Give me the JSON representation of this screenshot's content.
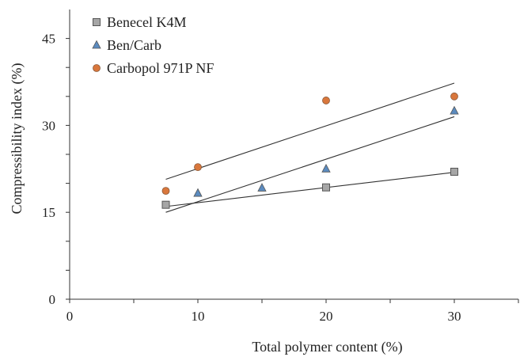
{
  "chart_data": {
    "type": "scatter",
    "xlabel": "Total polymer content (%)",
    "ylabel": "Compressibility index (%)",
    "xlim": [
      0,
      35
    ],
    "ylim": [
      0,
      50
    ],
    "x_ticks": [
      0,
      10,
      20,
      30
    ],
    "x_minor_ticks": [
      5,
      15,
      25,
      35
    ],
    "y_ticks": [
      0,
      15,
      30,
      45
    ],
    "y_minor_ticks": [
      5,
      10,
      20,
      25,
      35,
      40
    ],
    "grid": false,
    "legend_position": "top-left",
    "series": [
      {
        "name": "Benecel K4M",
        "marker": "square",
        "color": "#a6a6a6",
        "points": [
          [
            7.5,
            16.3
          ],
          [
            20,
            19.3
          ],
          [
            30,
            22.0
          ]
        ],
        "trendline": [
          [
            7.5,
            16.0
          ],
          [
            30,
            21.9
          ]
        ]
      },
      {
        "name": "Ben/Carb",
        "marker": "triangle",
        "color": "#5b8bbf",
        "points": [
          [
            10,
            18.3
          ],
          [
            15,
            19.2
          ],
          [
            20,
            22.5
          ],
          [
            30,
            32.5
          ]
        ],
        "trendline": [
          [
            7.5,
            15.0
          ],
          [
            30,
            31.5
          ]
        ]
      },
      {
        "name": "Carbopol 971P NF",
        "marker": "circle",
        "color": "#d9773c",
        "points": [
          [
            7.5,
            18.7
          ],
          [
            10,
            22.8
          ],
          [
            20,
            34.3
          ],
          [
            30,
            35.0
          ]
        ],
        "trendline": [
          [
            7.5,
            20.7
          ],
          [
            30,
            37.3
          ]
        ]
      }
    ]
  }
}
